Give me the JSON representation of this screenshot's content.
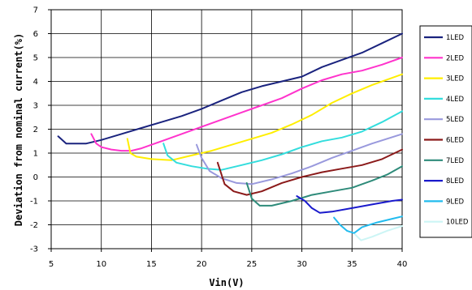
{
  "chart_data": {
    "type": "line",
    "xlabel": "Vin(V)",
    "ylabel": "Deviation from nominal current(%)",
    "xlim": [
      5,
      40
    ],
    "ylim": [
      -3,
      7
    ],
    "xticks": [
      "5",
      "10",
      "15",
      "20",
      "25",
      "30",
      "35",
      "40"
    ],
    "yticks": [
      "7",
      "6",
      "5",
      "4",
      "3",
      "2",
      "1",
      "0",
      "-1",
      "-2",
      "-3"
    ],
    "grid": true,
    "legend_position": "right",
    "series": [
      {
        "name": "1LED",
        "color": "#1a237e",
        "x": [
          5.7,
          6.5,
          7.5,
          8.5,
          10,
          12,
          14,
          16,
          18,
          20,
          22,
          24,
          26,
          28,
          30,
          32,
          34,
          36,
          38,
          40
        ],
        "y": [
          1.7,
          1.4,
          1.4,
          1.4,
          1.55,
          1.8,
          2.05,
          2.3,
          2.55,
          2.85,
          3.2,
          3.55,
          3.8,
          4.0,
          4.2,
          4.6,
          4.9,
          5.2,
          5.6,
          6.0
        ]
      },
      {
        "name": "2LED",
        "color": "#ff33cc",
        "x": [
          9,
          9.5,
          10,
          11,
          12,
          13,
          14,
          16,
          18,
          20,
          22,
          24,
          26,
          28,
          30,
          32,
          34,
          36,
          38,
          40
        ],
        "y": [
          1.8,
          1.4,
          1.25,
          1.15,
          1.1,
          1.1,
          1.2,
          1.5,
          1.8,
          2.1,
          2.4,
          2.7,
          3.0,
          3.3,
          3.7,
          4.05,
          4.3,
          4.45,
          4.7,
          5.0
        ]
      },
      {
        "name": "3LED",
        "color": "#ffee00",
        "x": [
          12.6,
          12.9,
          13.5,
          15,
          17,
          19,
          21,
          23,
          25,
          27,
          29,
          31,
          33,
          35,
          37,
          40
        ],
        "y": [
          1.6,
          1.0,
          0.85,
          0.75,
          0.7,
          0.9,
          1.1,
          1.35,
          1.6,
          1.85,
          2.2,
          2.6,
          3.1,
          3.5,
          3.85,
          4.3
        ]
      },
      {
        "name": "4LED",
        "color": "#33dddd",
        "x": [
          16.2,
          16.6,
          17.5,
          19,
          20.5,
          22,
          24,
          26,
          28,
          30,
          32,
          34,
          36,
          38,
          40
        ],
        "y": [
          1.4,
          0.9,
          0.6,
          0.45,
          0.35,
          0.3,
          0.5,
          0.7,
          0.95,
          1.25,
          1.5,
          1.65,
          1.9,
          2.3,
          2.75
        ]
      },
      {
        "name": "5LED",
        "color": "#9999dd",
        "x": [
          19.5,
          20,
          20.8,
          22,
          23.5,
          25,
          27,
          29,
          31,
          33,
          35,
          37,
          40
        ],
        "y": [
          1.35,
          0.8,
          0.25,
          -0.05,
          -0.25,
          -0.3,
          -0.1,
          0.15,
          0.45,
          0.8,
          1.1,
          1.4,
          1.8
        ]
      },
      {
        "name": "6LED",
        "color": "#8b1a1a",
        "x": [
          21.6,
          22.3,
          23.2,
          24.5,
          26,
          28,
          30,
          32,
          34,
          36,
          38,
          40
        ],
        "y": [
          0.6,
          -0.3,
          -0.6,
          -0.75,
          -0.6,
          -0.25,
          0.0,
          0.2,
          0.35,
          0.5,
          0.75,
          1.15
        ]
      },
      {
        "name": "7LED",
        "color": "#2e8b7a",
        "x": [
          24.5,
          25,
          25.8,
          27,
          29,
          31,
          33,
          35,
          37,
          38.5,
          40
        ],
        "y": [
          -0.25,
          -0.9,
          -1.2,
          -1.2,
          -1.0,
          -0.75,
          -0.6,
          -0.45,
          -0.15,
          0.1,
          0.45
        ]
      },
      {
        "name": "8LED",
        "color": "#1a1acc",
        "x": [
          29.5,
          30.3,
          31,
          31.8,
          33,
          35,
          37,
          39,
          40
        ],
        "y": [
          -0.8,
          -1.0,
          -1.3,
          -1.5,
          -1.45,
          -1.3,
          -1.15,
          -1.0,
          -0.95
        ]
      },
      {
        "name": "9LED",
        "color": "#22bbee",
        "x": [
          33.2,
          33.8,
          34.5,
          35.2,
          36,
          37.5,
          39,
          40
        ],
        "y": [
          -1.7,
          -2.0,
          -2.25,
          -2.35,
          -2.1,
          -1.9,
          -1.75,
          -1.65
        ]
      },
      {
        "name": "10LED",
        "color": "#ccf5f5",
        "x": [
          35.3,
          35.9,
          37,
          38.5,
          40
        ],
        "y": [
          -2.4,
          -2.65,
          -2.5,
          -2.25,
          -2.05
        ]
      }
    ]
  }
}
